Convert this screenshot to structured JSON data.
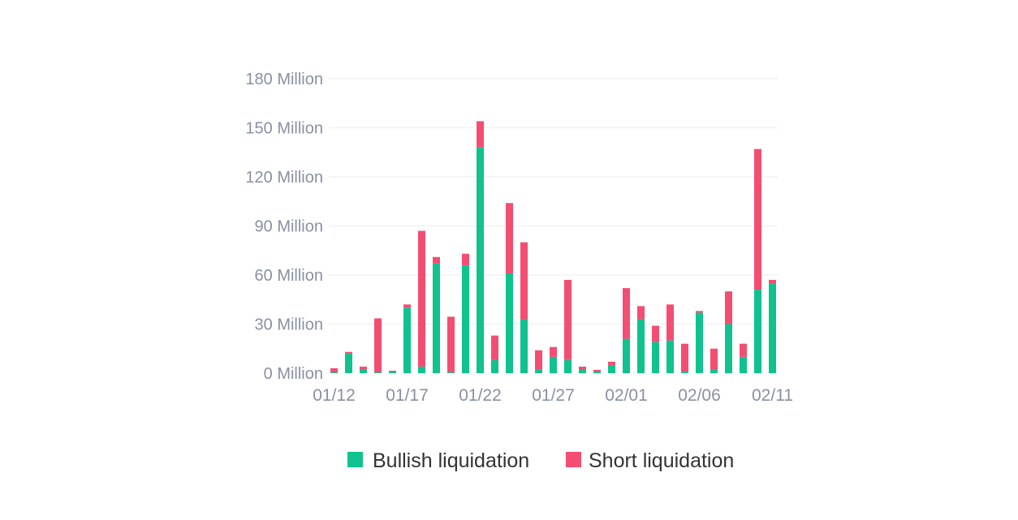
{
  "chart_data": {
    "type": "bar",
    "stacked": true,
    "grid": true,
    "legend_position": "bottom-center",
    "ylim": [
      0,
      180
    ],
    "yticks": [
      {
        "value": 0,
        "label": "0 Million"
      },
      {
        "value": 30,
        "label": "30 Million"
      },
      {
        "value": 60,
        "label": "60 Million"
      },
      {
        "value": 90,
        "label": "90 Million"
      },
      {
        "value": 120,
        "label": "120 Million"
      },
      {
        "value": 150,
        "label": "150 Million"
      },
      {
        "value": 180,
        "label": "180 Million"
      }
    ],
    "xticks": [
      {
        "index": 0,
        "label": "01/12"
      },
      {
        "index": 5,
        "label": "01/17"
      },
      {
        "index": 10,
        "label": "01/22"
      },
      {
        "index": 15,
        "label": "01/27"
      },
      {
        "index": 20,
        "label": "02/01"
      },
      {
        "index": 25,
        "label": "02/06"
      },
      {
        "index": 30,
        "label": "02/11"
      }
    ],
    "categories": [
      "01/12",
      "01/13",
      "01/14",
      "01/15",
      "01/16",
      "01/17",
      "01/18",
      "01/19",
      "01/20",
      "01/21",
      "01/22",
      "01/23",
      "01/24",
      "01/25",
      "01/26",
      "01/27",
      "01/28",
      "01/29",
      "01/30",
      "01/31",
      "02/01",
      "02/02",
      "02/03",
      "02/04",
      "02/05",
      "02/06",
      "02/07",
      "02/08",
      "02/09",
      "02/10",
      "02/11"
    ],
    "series": [
      {
        "name": "Bullish liquidation",
        "color": "#0fc28e",
        "values": [
          0.5,
          12,
          2,
          0.5,
          1,
          40,
          4,
          67,
          0.5,
          66,
          138,
          8,
          61,
          33,
          2,
          10,
          8,
          2,
          1,
          5,
          21,
          33,
          19,
          20,
          1,
          37,
          2,
          30,
          10,
          51,
          55
        ]
      },
      {
        "name": "Short liquidation",
        "color": "#f34e72",
        "values": [
          2.5,
          1,
          2,
          33,
          0.5,
          2,
          83,
          4,
          34,
          7,
          16,
          15,
          43,
          47,
          12,
          6,
          49,
          2,
          1,
          2,
          31,
          8,
          10,
          22,
          17,
          1,
          13,
          20,
          8,
          86,
          2
        ]
      }
    ]
  }
}
